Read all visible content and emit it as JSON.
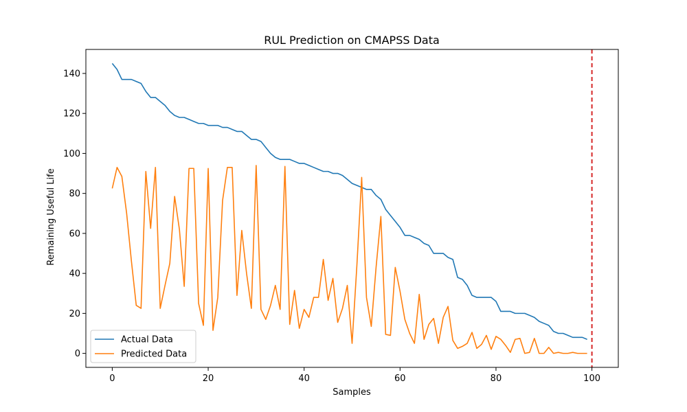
{
  "chart_data": {
    "type": "line",
    "title": "RUL Prediction on CMAPSS Data",
    "xlabel": "Samples",
    "ylabel": "Remaining Useful Life",
    "xlim": [
      -5.5,
      105.5
    ],
    "ylim": [
      -7,
      152
    ],
    "xticks": [
      0,
      20,
      40,
      60,
      80,
      100
    ],
    "yticks": [
      0,
      20,
      40,
      60,
      80,
      100,
      120,
      140
    ],
    "grid": false,
    "legend_position": "lower-left",
    "vline": {
      "x": 100,
      "color": "#d62728",
      "style": "dashed"
    },
    "series": [
      {
        "name": "Actual Data",
        "color": "#1f77b4",
        "values": [
          145,
          142,
          137,
          137,
          137,
          136,
          135,
          131,
          128,
          128,
          126,
          124,
          121,
          119,
          118,
          118,
          117,
          116,
          115,
          115,
          114,
          114,
          114,
          113,
          113,
          112,
          111,
          111,
          109,
          107,
          107,
          106,
          103,
          100,
          98,
          97,
          97,
          97,
          96,
          95,
          95,
          94,
          93,
          92,
          91,
          91,
          90,
          90,
          89,
          87,
          85,
          84,
          83,
          82,
          82,
          79,
          77,
          72,
          69,
          66,
          63,
          59,
          59,
          58,
          57,
          55,
          54,
          50,
          50,
          50,
          48,
          47,
          38,
          37,
          34,
          29,
          28,
          28,
          28,
          28,
          26,
          21,
          21,
          21,
          20,
          20,
          20,
          19,
          18,
          16,
          15,
          14,
          11,
          10,
          10,
          9,
          8,
          8,
          8,
          7
        ]
      },
      {
        "name": "Predicted Data",
        "color": "#ff7f0e",
        "values": [
          82.5,
          93,
          88.5,
          70,
          46,
          24,
          22.5,
          91,
          62.5,
          93,
          22.5,
          34,
          45,
          78.5,
          62,
          33.5,
          92.5,
          92.5,
          25,
          14,
          92.5,
          11.5,
          28,
          76.5,
          93,
          93,
          29,
          61.5,
          40,
          22.5,
          94,
          22,
          17,
          24,
          34,
          22,
          93.5,
          14.5,
          31.5,
          12.5,
          22,
          18,
          28,
          28,
          47,
          26.5,
          37.5,
          15.5,
          22.5,
          34,
          5,
          44,
          88,
          28,
          13.5,
          43,
          68.5,
          9.5,
          9,
          43,
          31,
          17,
          10,
          5,
          29.5,
          7,
          14.5,
          17.5,
          5,
          18,
          23.5,
          6.5,
          2.5,
          3.5,
          5,
          10.5,
          2.5,
          4.5,
          9,
          2,
          8.5,
          7,
          4,
          0.5,
          7,
          7.5,
          0,
          0.5,
          7.5,
          0,
          0,
          3,
          0,
          0.5,
          0,
          0,
          0.5,
          0,
          0,
          0
        ]
      }
    ]
  }
}
